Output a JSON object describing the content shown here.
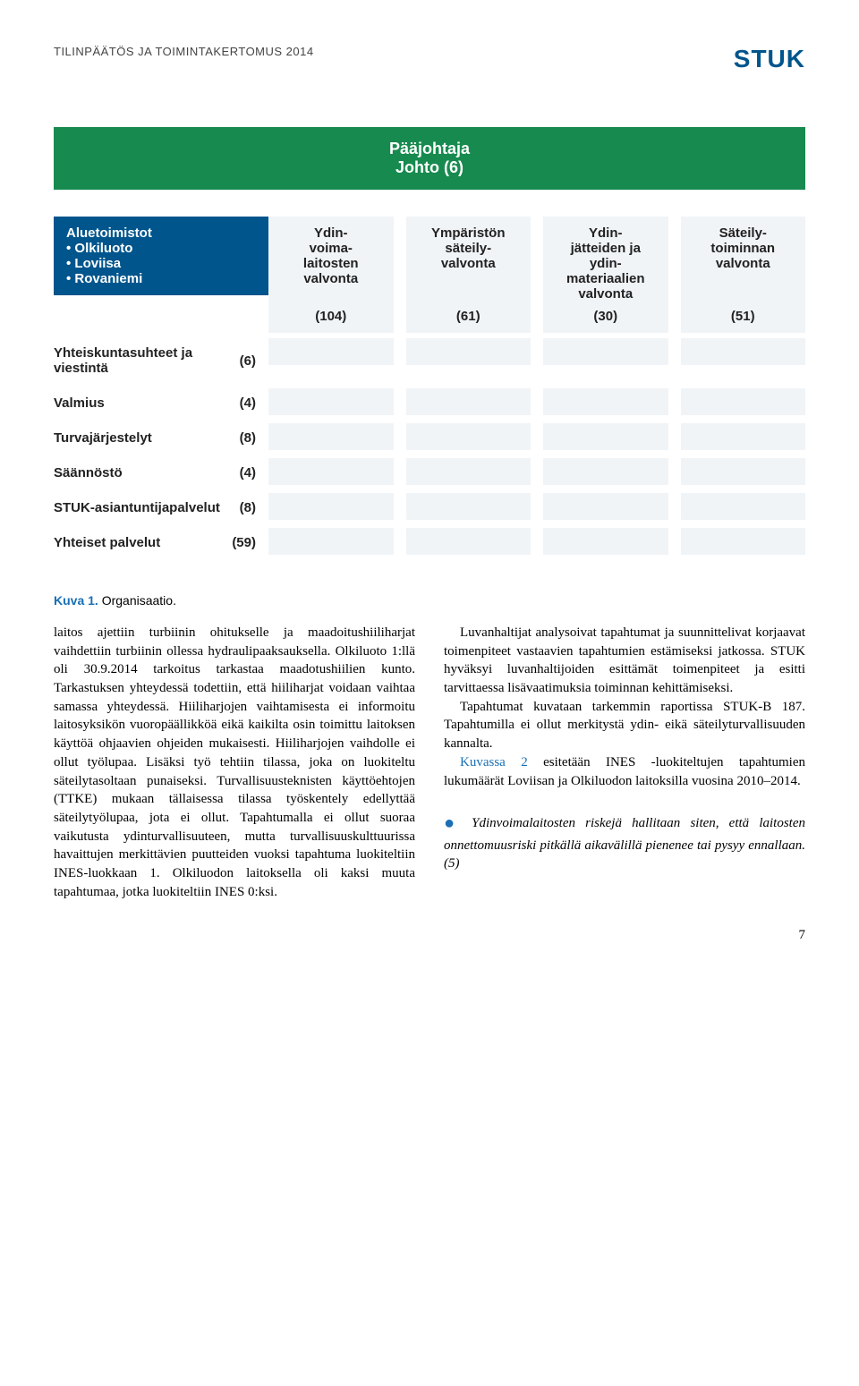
{
  "header": {
    "left": "TILINPÄÄTÖS JA TOIMINTAKERTOMUS 2014",
    "right": "STUK"
  },
  "org": {
    "top_line1": "Pääjohtaja",
    "top_line2": "Johto (6)",
    "columns": [
      {
        "label": "Ydin-\nvoima-\nlaitosten\nvalvonta",
        "count": "(104)"
      },
      {
        "label": "Ympäristön\nsäteily-\nvalvonta",
        "count": "(61)"
      },
      {
        "label": "Ydin-\njätteiden ja\nydin-\nmateriaalien\nvalvonta",
        "count": "(30)"
      },
      {
        "label": "Säteily-\ntoiminnan\nvalvonta",
        "count": "(51)"
      }
    ],
    "blue_box": {
      "title": "Aluetoimistot",
      "items": [
        "• Olkiluoto",
        "• Loviisa",
        "• Rovaniemi"
      ]
    },
    "left_rows": [
      {
        "label": "Yhteiskuntasuhteet ja viestintä",
        "count": "(6)"
      },
      {
        "label": "Valmius",
        "count": "(4)"
      },
      {
        "label": "Turvajärjestelyt",
        "count": "(8)"
      },
      {
        "label": "Säännöstö",
        "count": "(4)"
      },
      {
        "label": "STUK-asiantuntijapalvelut",
        "count": "(8)"
      },
      {
        "label": "Yhteiset palvelut",
        "count": "(59)"
      }
    ]
  },
  "caption": {
    "prefix": "Kuva 1.",
    "text": " Organisaatio."
  },
  "body": {
    "p1": "laitos ajettiin turbiinin ohitukselle ja maadoitushiiliharjat vaihdettiin turbiinin ollessa hydraulipaaksauksella. Olkiluoto 1:llä oli 30.9.2014 tarkoitus tarkastaa maadotushiilien kunto. Tarkastuksen yhteydessä todettiin, että hiiliharjat voidaan vaihtaa samassa yhteydessä. Hiiliharjojen vaihtamisesta ei informoitu laitosyksikön vuoropäällikköä eikä kaikilta osin toimittu laitoksen käyttöä ohjaavien ohjeiden mukaisesti. Hiiliharjojen vaihdolle ei ollut työlupaa. Lisäksi työ tehtiin tilassa, joka on luokiteltu säteilytasoltaan punaiseksi. Turvallisuusteknisten käyttöehtojen (TTKE) mukaan tällaisessa tilassa työskentely edellyttää säteilytyölupaa, jota ei ollut. Tapahtumalla ei ollut suoraa vaikutusta ydinturvallisuuteen, mutta turvallisuuskulttuurissa havaittujen merkittävien puutteiden vuoksi tapahtuma luokiteltiin INES-luokkaan 1. Olkiluodon laitoksella oli kaksi muuta tapahtumaa, jotka luokiteltiin INES 0:ksi.",
    "p2a": "Luvanhaltijat analysoivat tapahtumat ja suunnittelivat korjaavat toimenpiteet vastaavien tapahtumien estämiseksi jatkossa. STUK hyväksyi luvanhaltijoiden esittämät toimenpiteet ja esitti tarvittaessa lisävaatimuksia toiminnan kehittämiseksi.",
    "p2b": "Tapahtumat kuvataan tarkemmin raportissa STUK-B 187. Tapahtumilla ei ollut merkitystä ydin- eikä säteilyturvallisuuden kannalta.",
    "p2c_prefix": "",
    "p2c_link": "Kuvassa 2",
    "p2c_rest": " esitetään INES -luokiteltujen tapahtumien lukumäärät Loviisan ja Olkiluodon laitoksilla vuosina 2010–2014.",
    "bullet": "Ydinvoimalaitosten riskejä hallitaan siten, että laitosten onnettomuusriski pitkällä aikavälillä pienenee tai pysyy ennallaan. (5)"
  },
  "pagenum": "7"
}
